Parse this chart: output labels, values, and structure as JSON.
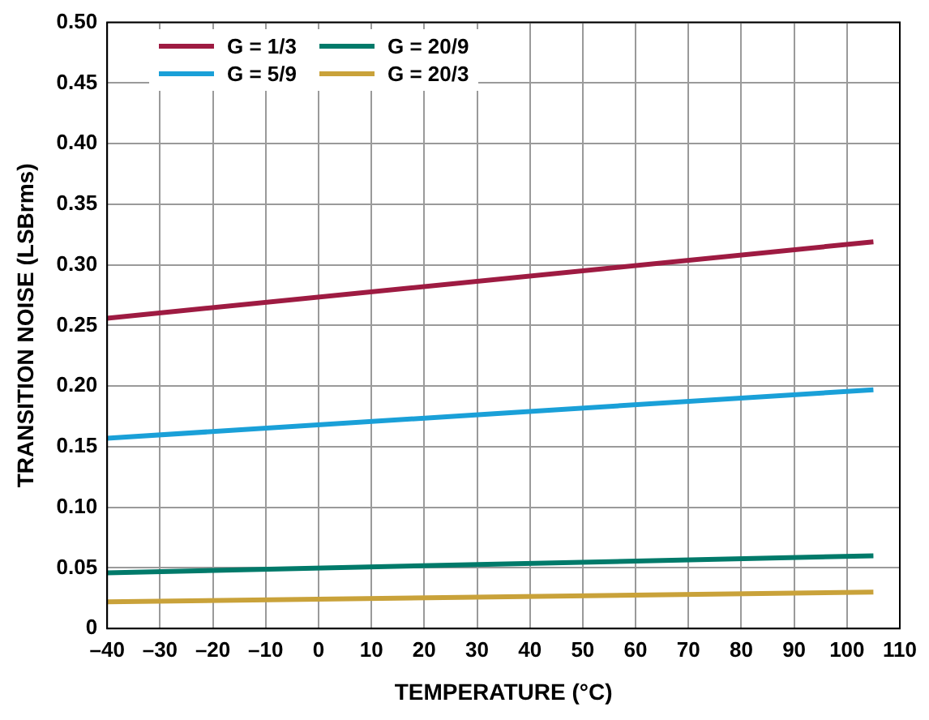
{
  "chart_data": {
    "type": "line",
    "xlabel": "TEMPERATURE (°C)",
    "ylabel": "TRANSITION NOISE (LSBrms)",
    "x": [
      -40,
      105
    ],
    "series": [
      {
        "name": "G = 1/3",
        "color": "#9e1b42",
        "values": [
          0.256,
          0.319
        ]
      },
      {
        "name": "G = 5/9",
        "color": "#1aa0d8",
        "values": [
          0.157,
          0.197
        ]
      },
      {
        "name": "G = 20/9",
        "color": "#007a6a",
        "values": [
          0.046,
          0.06
        ]
      },
      {
        "name": "G = 20/3",
        "color": "#c9a23a",
        "values": [
          0.022,
          0.03
        ]
      }
    ],
    "xlim": [
      -40,
      110
    ],
    "xticks": [
      {
        "value": -40,
        "label": "–40"
      },
      {
        "value": -30,
        "label": "–30"
      },
      {
        "value": -20,
        "label": "–20"
      },
      {
        "value": -10,
        "label": "–10"
      },
      0,
      10,
      20,
      30,
      40,
      50,
      60,
      70,
      80,
      90,
      100,
      110
    ],
    "ylim": [
      0,
      0.5
    ],
    "yticks": [
      0,
      {
        "value": 0.05,
        "label": "0.05"
      },
      {
        "value": 0.1,
        "label": "0.10"
      },
      {
        "value": 0.15,
        "label": "0.15"
      },
      {
        "value": 0.2,
        "label": "0.20"
      },
      {
        "value": 0.25,
        "label": "0.25"
      },
      {
        "value": 0.3,
        "label": "0.30"
      },
      {
        "value": 0.35,
        "label": "0.35"
      },
      {
        "value": 0.4,
        "label": "0.40"
      },
      {
        "value": 0.45,
        "label": "0.45"
      },
      {
        "value": 0.5,
        "label": "0.50"
      }
    ],
    "grid": true,
    "legend": "top left",
    "marker": "none",
    "line_style": "solid"
  }
}
